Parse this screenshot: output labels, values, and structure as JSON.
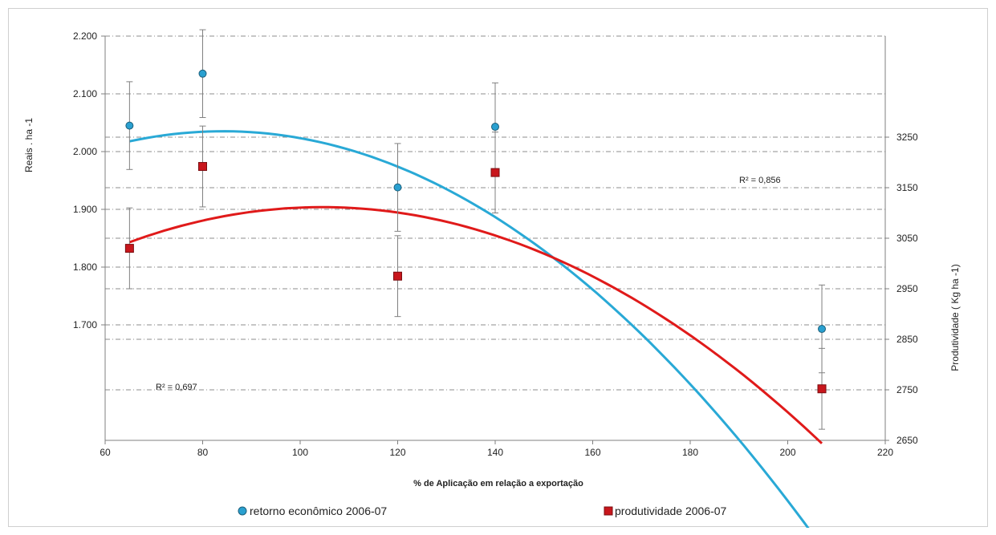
{
  "colors": {
    "series1": "#29a9d6",
    "series1_marker": "#2aa0d0",
    "series2": "#e01a1a",
    "series2_marker": "#c8161c",
    "grid": "#8c8c8c",
    "axis": "#7f7f7f",
    "errorbar": "#808080"
  },
  "chart_data": {
    "type": "scatter",
    "x_axis": {
      "label": "% de Aplicação em relação a exportação",
      "range": [
        60,
        220
      ],
      "ticks": [
        60,
        80,
        100,
        120,
        140,
        160,
        180,
        200,
        220
      ]
    },
    "y_left": {
      "label": "Reais . ha -1",
      "range": [
        1500,
        2200
      ],
      "ticks": [
        1700,
        1800,
        1900,
        2000,
        2100,
        2200
      ],
      "tick_labels": [
        "1.700",
        "1.800",
        "1.900",
        "2.000",
        "2.100",
        "2.200"
      ]
    },
    "y_right": {
      "label": "Produtividade ( Kg ha -1)",
      "range": [
        2650,
        3450
      ],
      "ticks": [
        2650,
        2750,
        2850,
        2950,
        3050,
        3150,
        3250
      ],
      "tick_labels": [
        "2650",
        "2750",
        "2850",
        "2950",
        "3050",
        "3150",
        "3250"
      ]
    },
    "grid": true,
    "legend_position": "bottom",
    "series": [
      {
        "name": "retorno econômico 2006-07",
        "axis": "left",
        "marker": "circle",
        "x": [
          65,
          80,
          120,
          140,
          207
        ],
        "y": [
          2045,
          2135,
          1938,
          2043,
          1693
        ],
        "error": [
          76,
          76,
          76,
          76,
          76
        ],
        "trend": "poly2",
        "trend_coeffs": [
          1697.3,
          8.03,
          -0.0477
        ],
        "r2_label": "R² = 0,856"
      },
      {
        "name": "produtividade 2006-07",
        "axis": "right",
        "marker": "square",
        "x": [
          65,
          80,
          120,
          140,
          207
        ],
        "y": [
          3030,
          3192,
          2975,
          3180,
          2752
        ],
        "error": [
          80,
          80,
          80,
          80,
          80
        ],
        "trend": "poly2",
        "trend_coeffs": [
          2625.65,
          9.3,
          -0.0445
        ],
        "r2_label": "R² = 0,697"
      }
    ]
  }
}
